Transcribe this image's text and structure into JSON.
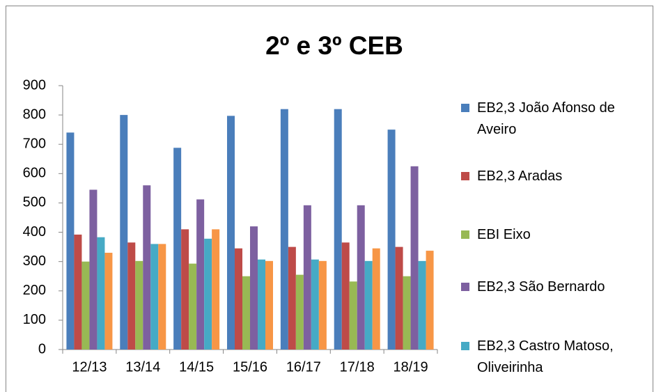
{
  "chart_data": {
    "type": "bar",
    "title": "2º e 3º CEB",
    "categories": [
      "12/13",
      "13/14",
      "14/15",
      "15/16",
      "16/17",
      "17/18",
      "18/19"
    ],
    "series": [
      {
        "name": "EB2,3 João Afonso de Aveiro",
        "color": "#4a7ebb",
        "values": [
          740,
          800,
          688,
          797,
          820,
          820,
          750
        ]
      },
      {
        "name": "EB2,3 Aradas",
        "color": "#be4b48",
        "values": [
          392,
          365,
          410,
          345,
          350,
          365,
          350
        ]
      },
      {
        "name": "EBI Eixo",
        "color": "#98b954",
        "values": [
          300,
          302,
          293,
          250,
          255,
          232,
          250
        ]
      },
      {
        "name": "EB2,3 São Bernardo",
        "color": "#7d60a0",
        "values": [
          545,
          560,
          512,
          420,
          492,
          492,
          625
        ]
      },
      {
        "name": "EB2,3 Castro Matoso, Oliveirinha",
        "color": "#46aac5",
        "values": [
          383,
          360,
          378,
          307,
          307,
          302,
          302
        ]
      },
      {
        "color": "#f79646",
        "values": [
          330,
          360,
          410,
          302,
          302,
          345,
          337
        ]
      }
    ],
    "ylim": [
      0,
      900
    ],
    "yticks": [
      0,
      100,
      200,
      300,
      400,
      500,
      600,
      700,
      800,
      900
    ],
    "grid": false
  }
}
